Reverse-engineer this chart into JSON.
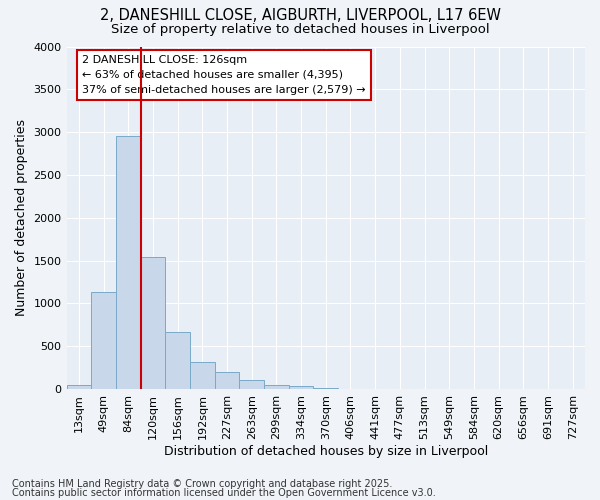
{
  "title_line1": "2, DANESHILL CLOSE, AIGBURTH, LIVERPOOL, L17 6EW",
  "title_line2": "Size of property relative to detached houses in Liverpool",
  "xlabel": "Distribution of detached houses by size in Liverpool",
  "ylabel": "Number of detached properties",
  "categories": [
    "13sqm",
    "49sqm",
    "84sqm",
    "120sqm",
    "156sqm",
    "192sqm",
    "227sqm",
    "263sqm",
    "299sqm",
    "334sqm",
    "370sqm",
    "406sqm",
    "441sqm",
    "477sqm",
    "513sqm",
    "549sqm",
    "584sqm",
    "620sqm",
    "656sqm",
    "691sqm",
    "727sqm"
  ],
  "values": [
    50,
    1130,
    2960,
    1540,
    660,
    320,
    200,
    100,
    50,
    30,
    10,
    5,
    2,
    0,
    0,
    0,
    0,
    0,
    0,
    0,
    0
  ],
  "bar_color": "#c8d8ea",
  "bar_edge_color": "#7aaac8",
  "vline_x": 2.5,
  "vline_color": "#cc0000",
  "annotation_text_line1": "2 DANESHILL CLOSE: 126sqm",
  "annotation_text_line2": "← 63% of detached houses are smaller (4,395)",
  "annotation_text_line3": "37% of semi-detached houses are larger (2,579) →",
  "annotation_box_color": "#cc0000",
  "annotation_box_fill": "#ffffff",
  "ylim": [
    0,
    4000
  ],
  "yticks": [
    0,
    500,
    1000,
    1500,
    2000,
    2500,
    3000,
    3500,
    4000
  ],
  "footnote_line1": "Contains HM Land Registry data © Crown copyright and database right 2025.",
  "footnote_line2": "Contains public sector information licensed under the Open Government Licence v3.0.",
  "background_color": "#f0f4f8",
  "plot_background": "#e8eef5",
  "grid_color": "#ffffff",
  "title_fontsize": 10.5,
  "subtitle_fontsize": 9.5,
  "axis_label_fontsize": 9,
  "tick_fontsize": 8,
  "footnote_fontsize": 7
}
